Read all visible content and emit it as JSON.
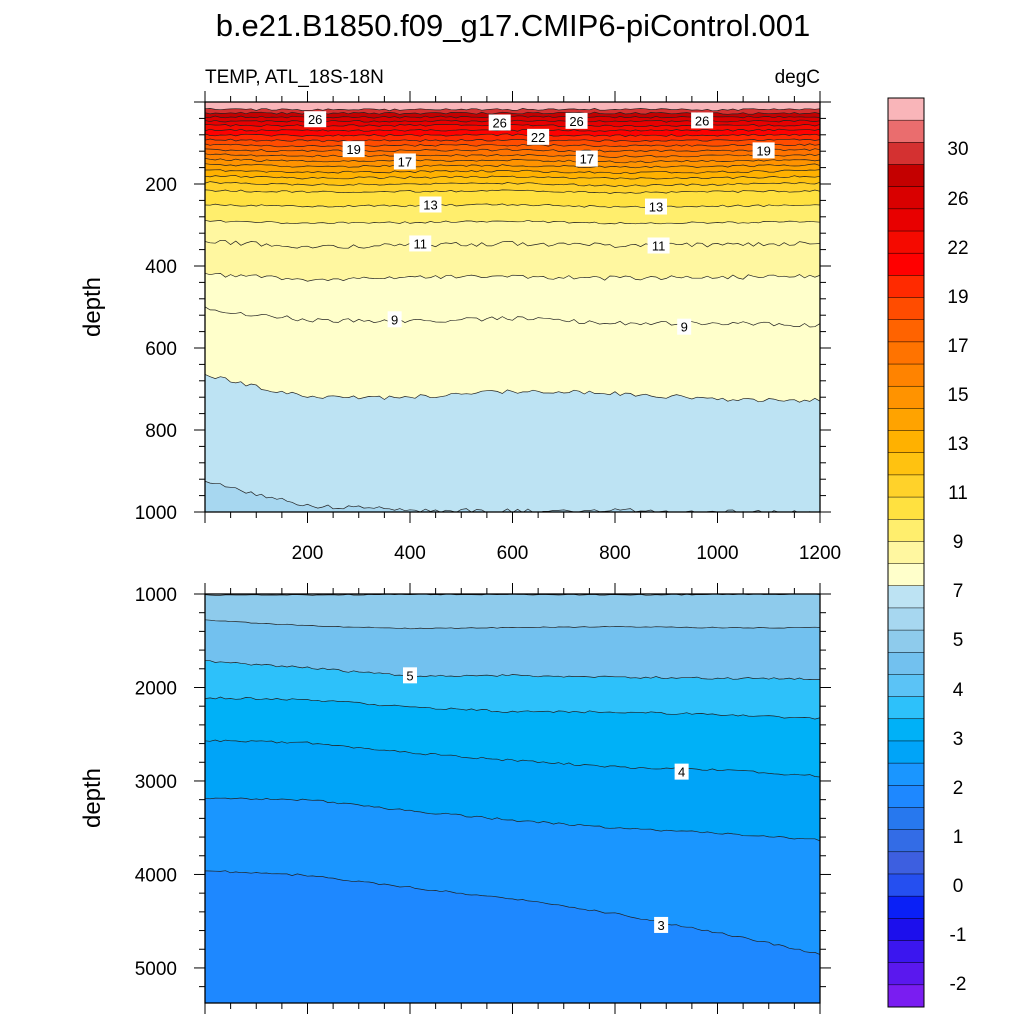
{
  "chart_data": {
    "type": "contour",
    "title": "b.e21.B1850.f09_g17.CMIP6-piControl.001",
    "panels": [
      {
        "name": "upper",
        "left_label": "TEMP, ATL_18S-18N",
        "right_label": "degC",
        "ylabel": "depth",
        "xlim": [
          0,
          1200
        ],
        "ylim": [
          0,
          1000
        ],
        "y_reversed": true,
        "xticks": [
          200,
          400,
          600,
          800,
          1000,
          1200
        ],
        "yticks": [
          200,
          400,
          600,
          800,
          1000
        ],
        "contour_lines": [
          {
            "level": 30,
            "depths": [
              18,
              19,
              19,
              18,
              18,
              19,
              18
            ]
          },
          {
            "level": 29,
            "depths": [
              27,
              27,
              28,
              27,
              27,
              28,
              27
            ]
          },
          {
            "level": 28,
            "depths": [
              36,
              37,
              37,
              36,
              37,
              37,
              36
            ]
          },
          {
            "level": 27,
            "depths": [
              46,
              47,
              47,
              46,
              47,
              47,
              46
            ]
          },
          {
            "level": 26,
            "depths": [
              56,
              58,
              57,
              57,
              58,
              57,
              57
            ]
          },
          {
            "level": 25,
            "depths": [
              68,
              70,
              69,
              69,
              70,
              69,
              68
            ]
          },
          {
            "level": 24,
            "depths": [
              80,
              82,
              81,
              80,
              82,
              81,
              80
            ]
          },
          {
            "level": 23,
            "depths": [
              92,
              95,
              94,
              93,
              95,
              94,
              92
            ]
          },
          {
            "level": 22,
            "depths": [
              104,
              108,
              106,
              105,
              107,
              106,
              104
            ]
          },
          {
            "level": 21,
            "depths": [
              116,
              120,
              118,
              117,
              120,
              118,
              116
            ]
          },
          {
            "level": 20,
            "depths": [
              128,
              132,
              131,
              130,
              133,
              131,
              129
            ]
          },
          {
            "level": 19,
            "depths": [
              140,
              145,
              143,
              142,
              146,
              144,
              141
            ]
          },
          {
            "level": 18,
            "depths": [
              152,
              158,
              156,
              155,
              159,
              157,
              153
            ]
          },
          {
            "level": 17,
            "depths": [
              166,
              172,
              170,
              168,
              173,
              171,
              167
            ]
          },
          {
            "level": 16,
            "depths": [
              180,
              186,
              184,
              182,
              187,
              185,
              181
            ]
          },
          {
            "level": 15,
            "depths": [
              196,
              202,
              200,
              198,
              204,
              201,
              198
            ]
          },
          {
            "level": 14,
            "depths": [
              215,
              220,
              218,
              216,
              222,
              219,
              217
            ]
          },
          {
            "level": 13,
            "depths": [
              250,
              255,
              253,
              250,
              256,
              254,
              252
            ]
          },
          {
            "level": 12,
            "depths": [
              290,
              296,
              294,
              290,
              296,
              294,
              292
            ]
          },
          {
            "level": 11,
            "depths": [
              340,
              352,
              350,
              345,
              350,
              348,
              345
            ]
          },
          {
            "level": 10,
            "depths": [
              420,
              432,
              428,
              426,
              430,
              428,
              424
            ]
          },
          {
            "level": 9,
            "depths": [
              505,
              532,
              535,
              528,
              540,
              540,
              545
            ]
          },
          {
            "level": 8,
            "depths": [
              665,
              722,
              720,
              705,
              710,
              725,
              728
            ]
          },
          {
            "level": 7,
            "depths": [
              925,
              985,
              995,
              998,
              995,
              1000,
              1000
            ]
          }
        ],
        "contour_labels": [
          {
            "text": "26",
            "x": 215,
            "depth": 42
          },
          {
            "text": "26",
            "x": 575,
            "depth": 50
          },
          {
            "text": "26",
            "x": 725,
            "depth": 46
          },
          {
            "text": "26",
            "x": 970,
            "depth": 45
          },
          {
            "text": "22",
            "x": 650,
            "depth": 85
          },
          {
            "text": "19",
            "x": 290,
            "depth": 115
          },
          {
            "text": "17",
            "x": 390,
            "depth": 145
          },
          {
            "text": "17",
            "x": 745,
            "depth": 138
          },
          {
            "text": "19",
            "x": 1090,
            "depth": 118
          },
          {
            "text": "13",
            "x": 440,
            "depth": 250
          },
          {
            "text": "13",
            "x": 880,
            "depth": 255
          },
          {
            "text": "11",
            "x": 420,
            "depth": 345
          },
          {
            "text": "11",
            "x": 885,
            "depth": 350
          },
          {
            "text": "9",
            "x": 370,
            "depth": 530
          },
          {
            "text": "9",
            "x": 935,
            "depth": 548
          }
        ]
      },
      {
        "name": "lower",
        "ylabel": "depth",
        "xlim": [
          0,
          1200
        ],
        "ylim": [
          1000,
          5375
        ],
        "y_reversed": true,
        "yticks": [
          1000,
          2000,
          3000,
          4000,
          5000
        ],
        "contour_lines": [
          {
            "level": 6.5,
            "depths": [
              1010,
              1010,
              1005,
              1005,
              1010,
              1005,
              1000
            ]
          },
          {
            "level": 6,
            "depths": [
              1280,
              1340,
              1370,
              1360,
              1350,
              1360,
              1360
            ]
          },
          {
            "level": 5,
            "depths": [
              1720,
              1790,
              1880,
              1870,
              1890,
              1900,
              1910
            ]
          },
          {
            "level": 4.5,
            "depths": [
              2110,
              2130,
              2210,
              2260,
              2260,
              2290,
              2330
            ]
          },
          {
            "level": 4,
            "depths": [
              2570,
              2590,
              2700,
              2780,
              2850,
              2880,
              2950
            ]
          },
          {
            "level": 3.5,
            "depths": [
              3180,
              3200,
              3320,
              3420,
              3500,
              3560,
              3630
            ]
          },
          {
            "level": 3,
            "depths": [
              3960,
              4010,
              4140,
              4260,
              4420,
              4620,
              4850
            ]
          }
        ],
        "contour_labels": [
          {
            "text": "5",
            "x": 400,
            "depth": 1870
          },
          {
            "text": "4",
            "x": 930,
            "depth": 2900
          },
          {
            "text": "3",
            "x": 890,
            "depth": 4540
          }
        ]
      }
    ],
    "colorbar": {
      "labels": [
        "30",
        "26",
        "22",
        "19",
        "17",
        "15",
        "13",
        "11",
        "9",
        "7",
        "5",
        "4",
        "3",
        "2",
        "1",
        "0",
        "-1",
        "-2"
      ],
      "colors": [
        "#f9b5b9",
        "#ea6d6e",
        "#d43131",
        "#c40000",
        "#d90000",
        "#e80000",
        "#f50a00",
        "#ff0000",
        "#ff2a00",
        "#ff4c00",
        "#ff6300",
        "#ff7300",
        "#ff8300",
        "#ff9300",
        "#ffa300",
        "#ffb100",
        "#ffc210",
        "#ffd22a",
        "#ffe140",
        "#ffee6d",
        "#fff7a0",
        "#ffffcb",
        "#bde3f3",
        "#a7d7f0",
        "#8ecbec",
        "#72c1ef",
        "#5bc3f6",
        "#2dc1fa",
        "#00b1f7",
        "#00a4f8",
        "#1a96ff",
        "#1e88ff",
        "#2778ee",
        "#336ce6",
        "#3d5fe0",
        "#254ff0",
        "#0a20f6",
        "#1c0fec",
        "#3b16ef",
        "#5a18ee",
        "#7a1df1"
      ]
    }
  }
}
